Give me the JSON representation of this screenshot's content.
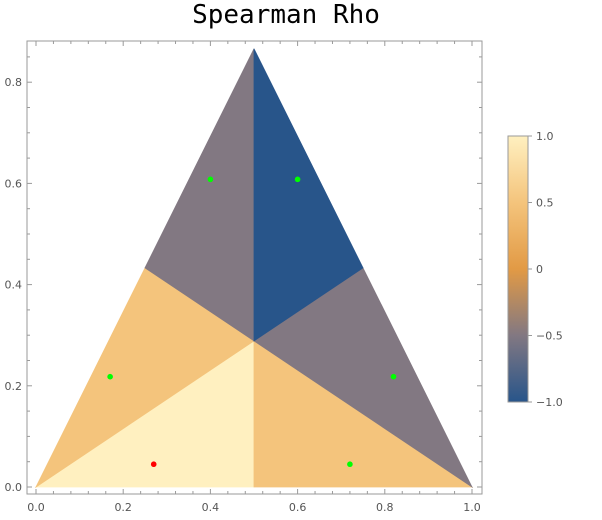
{
  "chart_data": {
    "type": "heatmap",
    "title": "Spearman Rho",
    "xlim": [
      0.0,
      1.0
    ],
    "ylim": [
      0.0,
      0.866
    ],
    "xticks": [
      "0.0",
      "0.2",
      "0.4",
      "0.6",
      "0.8",
      "1.0"
    ],
    "yticks": [
      "0.0",
      "0.2",
      "0.4",
      "0.6",
      "0.8"
    ],
    "regions": [
      {
        "name": "bottom-left-inner",
        "value": 1.0,
        "color": "#fff0c0",
        "polygon": [
          [
            0.0,
            0.0
          ],
          [
            0.5,
            0.0
          ],
          [
            0.5,
            0.2887
          ]
        ]
      },
      {
        "name": "bottom-left-outer",
        "value": 0.5,
        "color": "#f4c47c",
        "polygon": [
          [
            0.0,
            0.0
          ],
          [
            0.5,
            0.2887
          ],
          [
            0.25,
            0.433
          ]
        ]
      },
      {
        "name": "bottom-right-inner",
        "value": 0.5,
        "color": "#f4c47c",
        "polygon": [
          [
            0.5,
            0.0
          ],
          [
            1.0,
            0.0
          ],
          [
            0.5,
            0.2887
          ]
        ]
      },
      {
        "name": "bottom-right-outer",
        "value": -0.5,
        "color": "#827882",
        "polygon": [
          [
            1.0,
            0.0
          ],
          [
            0.75,
            0.433
          ],
          [
            0.5,
            0.2887
          ]
        ]
      },
      {
        "name": "top-left",
        "value": -0.5,
        "color": "#827882",
        "polygon": [
          [
            0.5,
            0.866
          ],
          [
            0.5,
            0.2887
          ],
          [
            0.25,
            0.433
          ]
        ]
      },
      {
        "name": "top-right",
        "value": -1.0,
        "color": "#28558a",
        "polygon": [
          [
            0.5,
            0.866
          ],
          [
            0.75,
            0.433
          ],
          [
            0.5,
            0.2887
          ]
        ]
      }
    ],
    "points": [
      {
        "x": 0.27,
        "y": 0.045,
        "color": "#ff0000"
      },
      {
        "x": 0.72,
        "y": 0.045,
        "color": "#00ff00"
      },
      {
        "x": 0.17,
        "y": 0.218,
        "color": "#00ff00"
      },
      {
        "x": 0.82,
        "y": 0.218,
        "color": "#00ff00"
      },
      {
        "x": 0.4,
        "y": 0.608,
        "color": "#00ff00"
      },
      {
        "x": 0.6,
        "y": 0.608,
        "color": "#00ff00"
      }
    ],
    "colorbar": {
      "range": [
        -1.0,
        1.0
      ],
      "ticks": [
        "1.0",
        "0.5",
        "0",
        "-0.5",
        "-1.0"
      ],
      "tick_values": [
        1.0,
        0.5,
        0,
        -0.5,
        -1.0
      ],
      "gradient": [
        "#fff0c0",
        "#f4c47c",
        "#e29a45",
        "#827882",
        "#28558a"
      ],
      "placement": "right"
    },
    "grid": false
  }
}
